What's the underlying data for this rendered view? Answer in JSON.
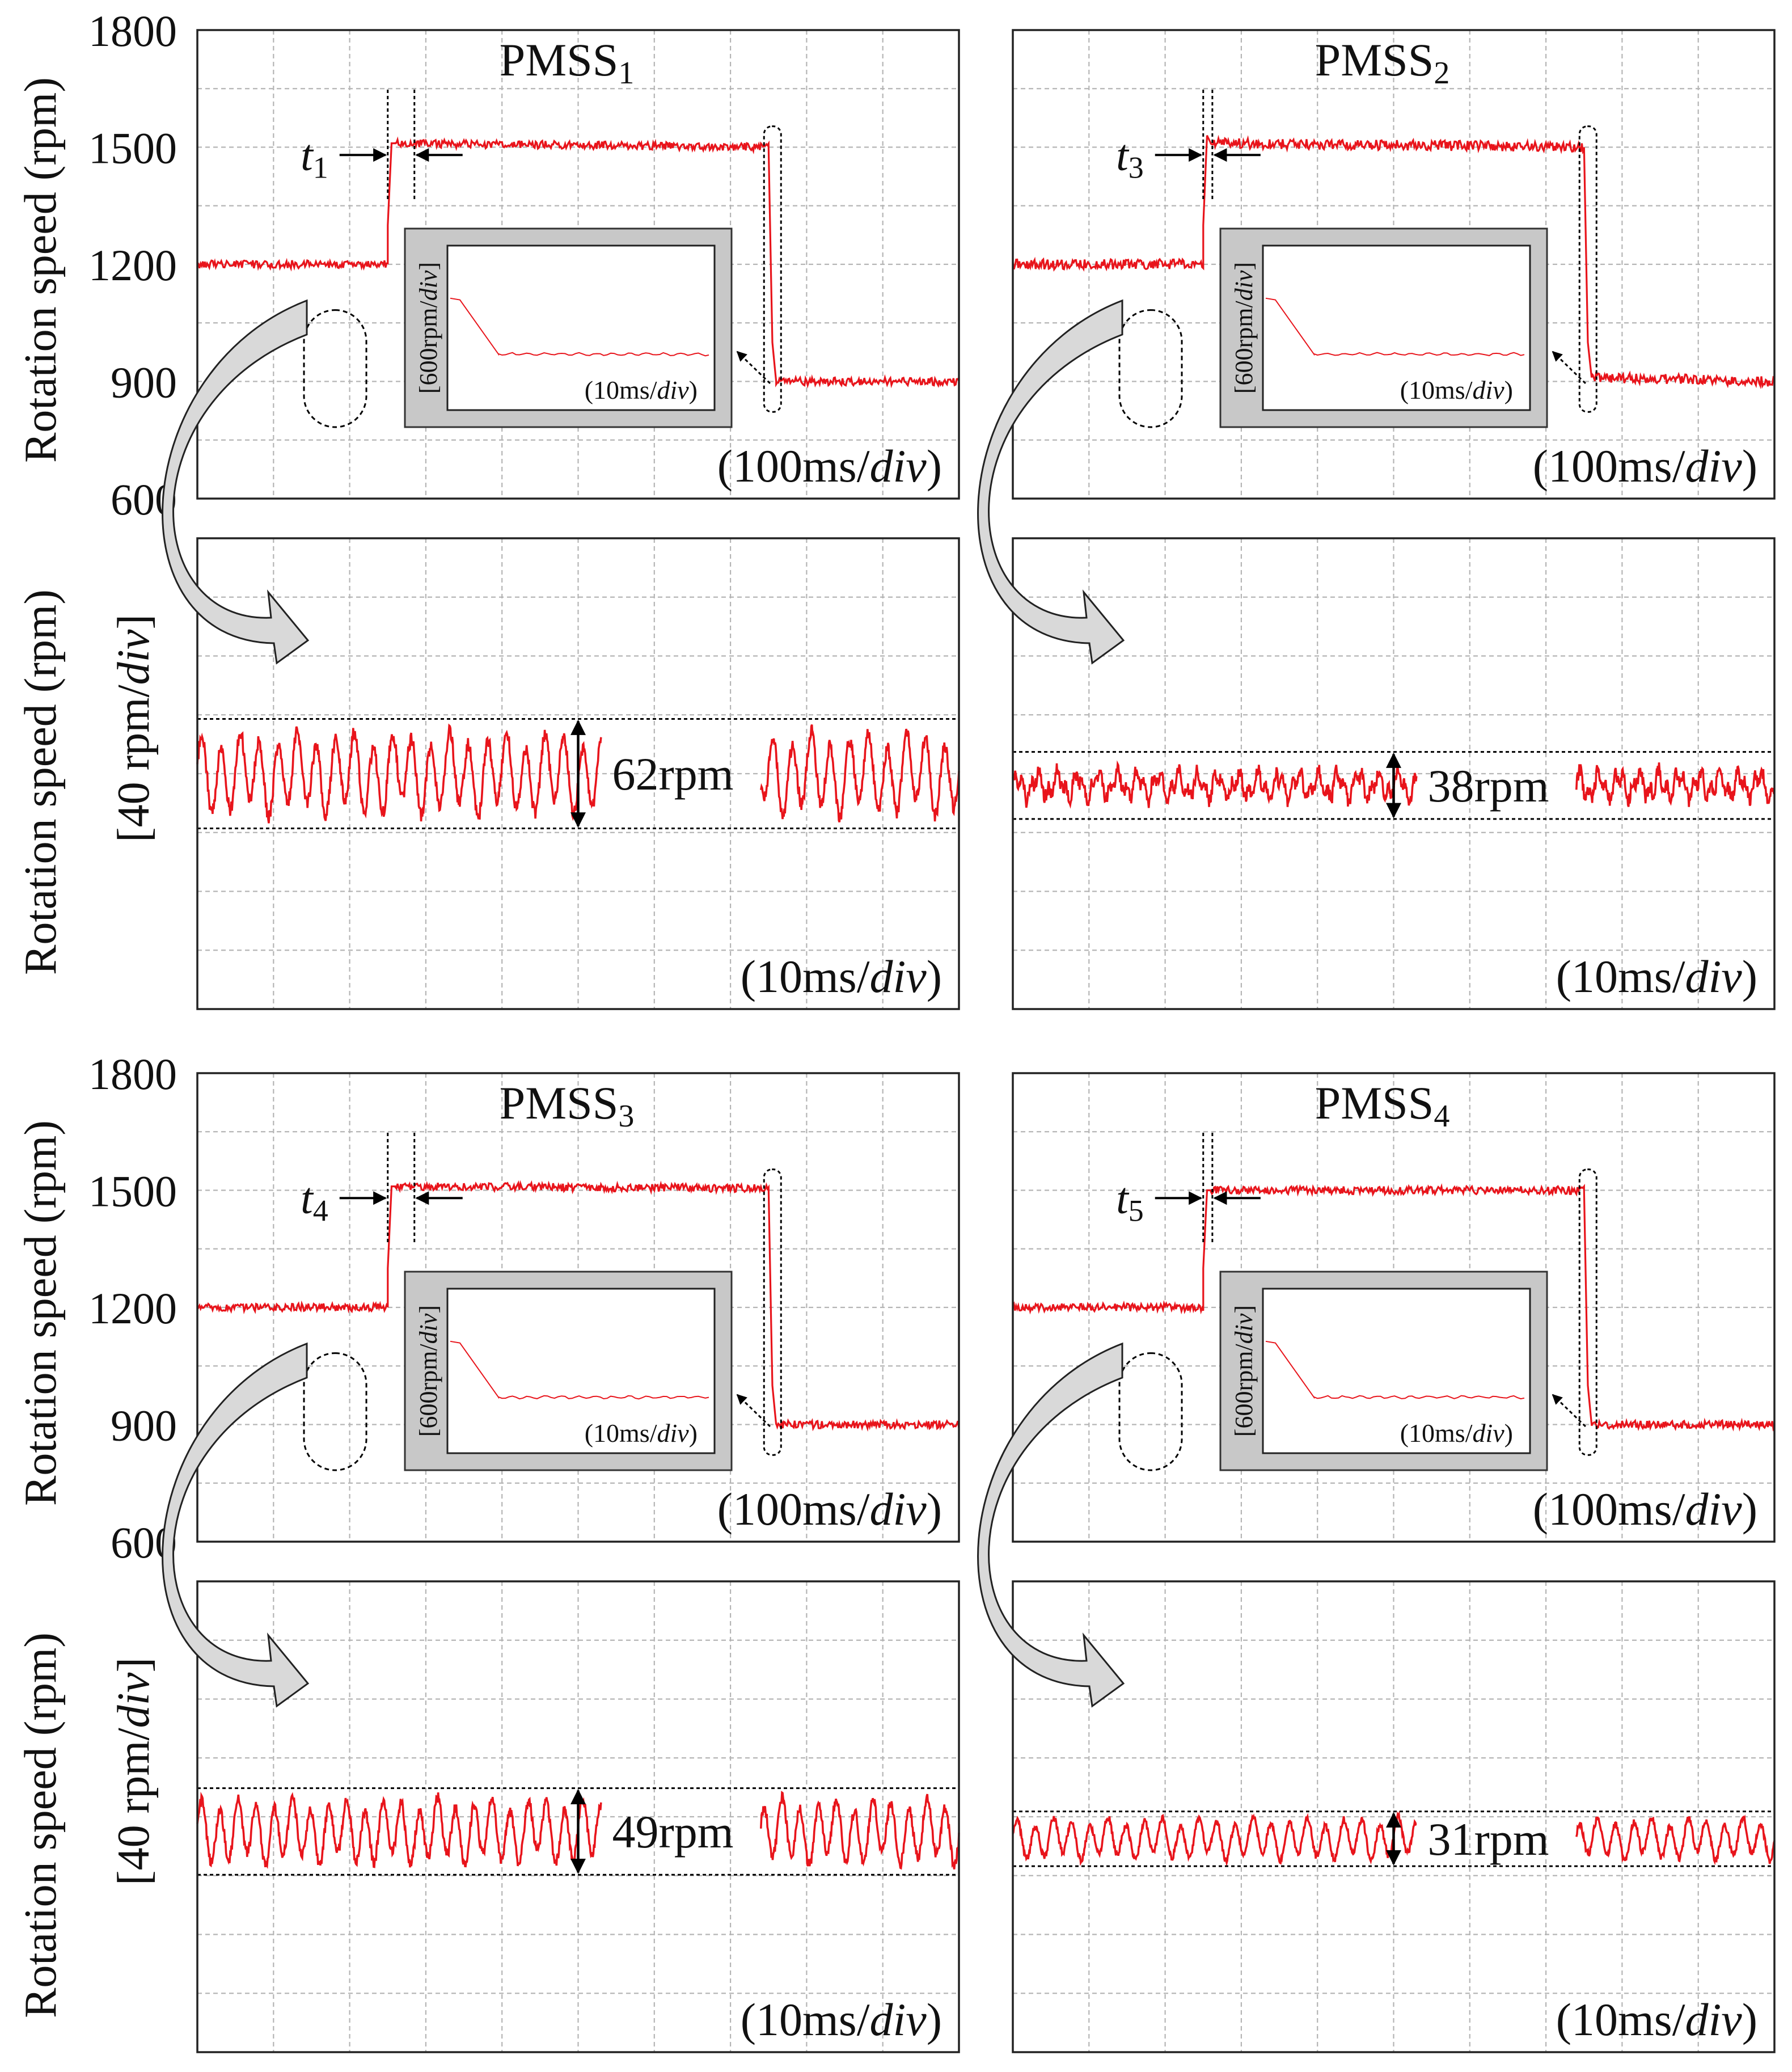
{
  "colors": {
    "trace": "#e8141b",
    "grid": "#b5b5b5",
    "frame": "#222222",
    "inset_bg": "#c8c8c8",
    "arrow_fill": "#d9d9d9"
  },
  "y_axis": {
    "main_label": "Rotation speed (rpm)",
    "main_ticks": [
      "1800",
      "1500",
      "1200",
      "900",
      "600"
    ],
    "zoom_label_line1": "Rotation speed (rpm)",
    "zoom_label_line2_prefix": "[40 rpm/",
    "zoom_label_line2_italic": "div",
    "zoom_label_line2_suffix": "]"
  },
  "scales": {
    "main": {
      "prefix": "(100ms/",
      "italic": "div",
      "suffix": ")"
    },
    "zoom": {
      "prefix": "(10ms/",
      "italic": "div",
      "suffix": ")"
    },
    "inset_time": {
      "prefix": "(10ms/",
      "italic": "div",
      "suffix": ")"
    },
    "inset_speed": {
      "prefix": "[600rpm/",
      "italic": "div",
      "suffix": "]"
    }
  },
  "panels": [
    {
      "title": "PMSS",
      "title_sub": "1",
      "time_label": "t",
      "time_sub": "1",
      "ripple_label": "62rpm"
    },
    {
      "title": "PMSS",
      "title_sub": "2",
      "time_label": "t",
      "time_sub": "3",
      "ripple_label": "38rpm"
    },
    {
      "title": "PMSS",
      "title_sub": "3",
      "time_label": "t",
      "time_sub": "4",
      "ripple_label": "49rpm"
    },
    {
      "title": "PMSS",
      "title_sub": "4",
      "time_label": "t",
      "time_sub": "5",
      "ripple_label": "31rpm"
    }
  ],
  "chart_data": [
    {
      "type": "line",
      "title": "PMSS1",
      "ylabel": "Rotation speed (rpm)",
      "xlabel": "(100ms/div)",
      "ylim": [
        600,
        1800
      ],
      "x_divisions": 10,
      "y_divisions": 8,
      "x": [
        0,
        2.5,
        2.5,
        2.55,
        2.6,
        7.5,
        7.55,
        7.6,
        10
      ],
      "y": [
        1200,
        1200,
        1300,
        1510,
        1510,
        1500,
        1000,
        900,
        900
      ],
      "annotation": "t1"
    },
    {
      "type": "line",
      "title": "PMSS1 zoom",
      "ylabel": "Rotation speed (rpm) [40 rpm/div]",
      "xlabel": "(10ms/div)",
      "ylim": [
        -160,
        160
      ],
      "peak_to_peak_rpm": 62,
      "oscillation_cycles": 40
    },
    {
      "type": "line",
      "title": "PMSS2",
      "ylabel": "Rotation speed (rpm)",
      "xlabel": "(100ms/div)",
      "ylim": [
        600,
        1800
      ],
      "x_divisions": 10,
      "y_divisions": 8,
      "x": [
        0,
        2.5,
        2.5,
        2.55,
        2.6,
        7.5,
        7.55,
        7.6,
        10
      ],
      "y": [
        1200,
        1200,
        1300,
        1530,
        1510,
        1500,
        1000,
        910,
        900
      ],
      "annotation": "t3"
    },
    {
      "type": "line",
      "title": "PMSS2 zoom",
      "ylabel": "Rotation speed (rpm) [40 rpm/div]",
      "xlabel": "(10ms/div)",
      "ylim": [
        -160,
        160
      ],
      "peak_to_peak_rpm": 38,
      "oscillation_cycles": 38
    },
    {
      "type": "line",
      "title": "PMSS3",
      "ylabel": "Rotation speed (rpm)",
      "xlabel": "(100ms/div)",
      "ylim": [
        600,
        1800
      ],
      "x_divisions": 10,
      "y_divisions": 8,
      "x": [
        0,
        2.5,
        2.5,
        2.55,
        2.6,
        7.5,
        7.55,
        7.6,
        10
      ],
      "y": [
        1200,
        1200,
        1300,
        1510,
        1510,
        1505,
        1000,
        900,
        900
      ],
      "annotation": "t4"
    },
    {
      "type": "line",
      "title": "PMSS3 zoom",
      "ylabel": "Rotation speed (rpm) [40 rpm/div]",
      "xlabel": "(10ms/div)",
      "ylim": [
        -160,
        160
      ],
      "peak_to_peak_rpm": 49,
      "oscillation_cycles": 42
    },
    {
      "type": "line",
      "title": "PMSS4",
      "ylabel": "Rotation speed (rpm)",
      "xlabel": "(100ms/div)",
      "ylim": [
        600,
        1800
      ],
      "x_divisions": 10,
      "y_divisions": 8,
      "x": [
        0,
        2.5,
        2.5,
        2.55,
        2.6,
        7.5,
        7.55,
        7.6,
        10
      ],
      "y": [
        1200,
        1200,
        1300,
        1500,
        1500,
        1500,
        1000,
        900,
        900
      ],
      "annotation": "t5"
    },
    {
      "type": "line",
      "title": "PMSS4 zoom",
      "ylabel": "Rotation speed (rpm) [40 rpm/div]",
      "xlabel": "(10ms/div)",
      "ylim": [
        -160,
        160
      ],
      "peak_to_peak_rpm": 31,
      "oscillation_cycles": 42
    }
  ]
}
